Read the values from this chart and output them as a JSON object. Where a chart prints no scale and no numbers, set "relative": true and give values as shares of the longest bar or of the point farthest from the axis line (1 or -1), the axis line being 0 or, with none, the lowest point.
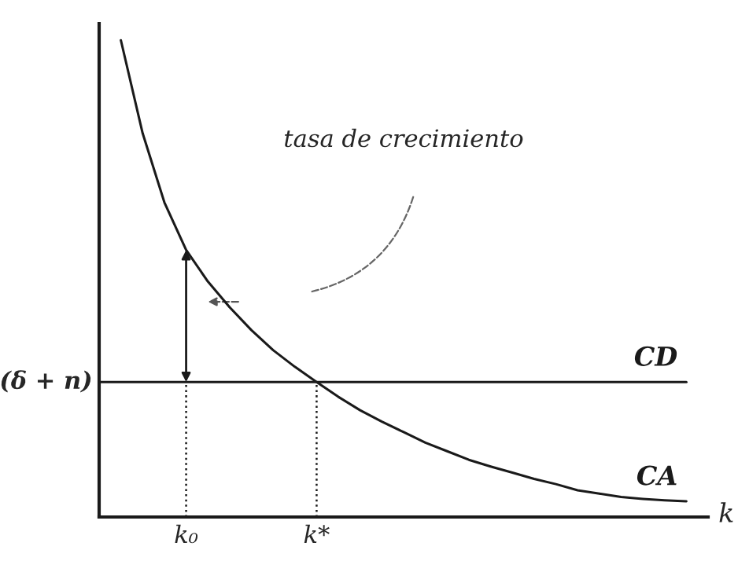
{
  "chart_data": {
    "type": "line",
    "relative": true,
    "xlabel": "k",
    "categories": [
      null,
      null,
      null,
      null,
      "k₀",
      null,
      null,
      null,
      null,
      null,
      "k*",
      null,
      null,
      null,
      null,
      null,
      null,
      null,
      null,
      null,
      null,
      null,
      null,
      null,
      null,
      null,
      null,
      null,
      null
    ],
    "series": [
      {
        "name": "CA",
        "color": "#1a1a1a",
        "values": [
          null,
          1.0,
          0.805,
          0.66,
          0.56,
          0.494,
          0.44,
          0.392,
          0.35,
          0.315,
          0.283,
          0.252,
          0.224,
          0.2,
          0.178,
          0.156,
          0.138,
          0.12,
          0.106,
          0.093,
          0.08,
          0.069,
          0.056,
          0.049,
          0.042,
          0.038,
          0.035,
          0.033,
          null
        ]
      },
      {
        "name": "CD",
        "color": "#1a1a1a",
        "values": [
          0.283,
          0.283,
          0.283,
          0.283,
          0.283,
          0.283,
          0.283,
          0.283,
          0.283,
          0.283,
          0.283,
          0.283,
          0.283,
          0.283,
          0.283,
          0.283,
          0.283,
          0.283,
          0.283,
          0.283,
          0.283,
          0.283,
          0.283,
          0.283,
          0.283,
          0.283,
          0.283,
          0.283,
          null
        ]
      }
    ],
    "ref_lines": [
      {
        "axis": "x",
        "value": "k₀",
        "line_style": "dotted"
      },
      {
        "axis": "x",
        "value": "k*",
        "line_style": "dotted"
      }
    ],
    "annotations": [
      "tasa de crecimiento",
      "(δ + n)"
    ],
    "tick_labels": "x",
    "grid": false,
    "legend": false,
    "marker": "none",
    "line_style": "solid"
  }
}
